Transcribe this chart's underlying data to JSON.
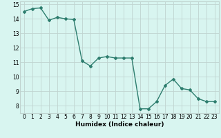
{
  "xlabel": "Humidex (Indice chaleur)",
  "x": [
    0,
    1,
    2,
    3,
    4,
    5,
    6,
    7,
    8,
    9,
    10,
    11,
    12,
    13,
    14,
    15,
    16,
    17,
    18,
    19,
    20,
    21,
    22,
    23
  ],
  "y": [
    14.5,
    14.7,
    14.75,
    13.9,
    14.1,
    14.0,
    13.95,
    11.1,
    10.75,
    11.3,
    11.4,
    11.3,
    11.3,
    11.3,
    7.8,
    7.8,
    8.3,
    9.4,
    9.85,
    9.2,
    9.1,
    8.5,
    8.3,
    8.3
  ],
  "ylim": [
    7.5,
    15.2
  ],
  "yticks": [
    8,
    9,
    10,
    11,
    12,
    13,
    14,
    15
  ],
  "xticks": [
    0,
    1,
    2,
    3,
    4,
    5,
    6,
    7,
    8,
    9,
    10,
    11,
    12,
    13,
    14,
    15,
    16,
    17,
    18,
    19,
    20,
    21,
    22,
    23
  ],
  "xtick_labels": [
    "0",
    "1",
    "2",
    "3",
    "4",
    "5",
    "6",
    "7",
    "8",
    "9",
    "10",
    "11",
    "12",
    "13",
    "14",
    "15",
    "16",
    "17",
    "18",
    "19",
    "20",
    "21",
    "22",
    "23"
  ],
  "line_color": "#2d7d6e",
  "marker": "D",
  "marker_size": 2.0,
  "line_width": 1.0,
  "bg_color": "#d8f5f0",
  "grid_color": "#c0d4d0",
  "label_fontsize": 6.5,
  "tick_fontsize": 5.5
}
